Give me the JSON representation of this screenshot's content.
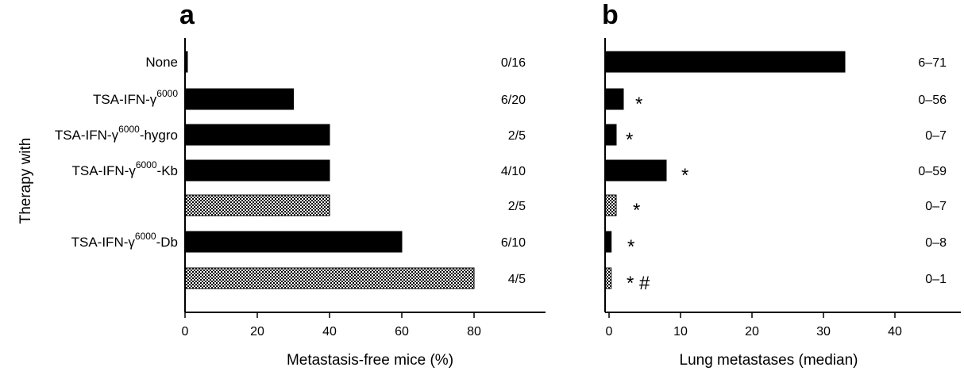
{
  "chart_data": [
    {
      "panel": "a",
      "type": "bar",
      "orientation": "horizontal",
      "ylabel": "Therapy with",
      "xlabel": "Metastasis-free mice (%)",
      "xlim": [
        0,
        95
      ],
      "xticks": [
        0,
        20,
        40,
        60,
        80
      ],
      "bars": [
        {
          "label_base": "None",
          "label_sup": "",
          "label_suffix": "",
          "value": 0.5,
          "ratio": "0/16",
          "fill": "solid"
        },
        {
          "label_base": "TSA-IFN-γ",
          "label_sup": "6000",
          "label_suffix": "",
          "value": 30,
          "ratio": "6/20",
          "fill": "solid"
        },
        {
          "label_base": "TSA-IFN-γ",
          "label_sup": "6000",
          "label_suffix": "-hygro",
          "value": 40,
          "ratio": "2/5",
          "fill": "solid"
        },
        {
          "label_base": "TSA-IFN-γ",
          "label_sup": "6000",
          "label_suffix": "-Kb",
          "value": 40,
          "ratio": "4/10",
          "fill": "solid"
        },
        {
          "label_base": "",
          "label_sup": "",
          "label_suffix": "",
          "value": 40,
          "ratio": "2/5",
          "fill": "hatched"
        },
        {
          "label_base": "TSA-IFN-γ",
          "label_sup": "6000",
          "label_suffix": "-Db",
          "value": 60,
          "ratio": "6/10",
          "fill": "solid"
        },
        {
          "label_base": "",
          "label_sup": "",
          "label_suffix": "",
          "value": 80,
          "ratio": "4/5",
          "fill": "hatched"
        }
      ]
    },
    {
      "panel": "b",
      "type": "bar",
      "orientation": "horizontal",
      "xlabel": "Lung metastases (median)",
      "xlim": [
        0,
        48
      ],
      "xticks": [
        0,
        10,
        20,
        30,
        40
      ],
      "bars": [
        {
          "value": 33,
          "range": "6–71",
          "mark": "",
          "fill": "solid"
        },
        {
          "value": 2,
          "range": "0–56",
          "mark": "*",
          "fill": "solid"
        },
        {
          "value": 1,
          "range": "0–7",
          "mark": "*",
          "fill": "solid"
        },
        {
          "value": 8,
          "range": "0–59",
          "mark": "*",
          "fill": "solid"
        },
        {
          "value": 1,
          "range": "0–7",
          "mark": "*",
          "fill": "hatched"
        },
        {
          "value": 0.3,
          "range": "0–8",
          "mark": "*",
          "fill": "solid"
        },
        {
          "value": 0.3,
          "range": "0–1",
          "mark": "*  #",
          "fill": "hatched"
        }
      ]
    }
  ]
}
